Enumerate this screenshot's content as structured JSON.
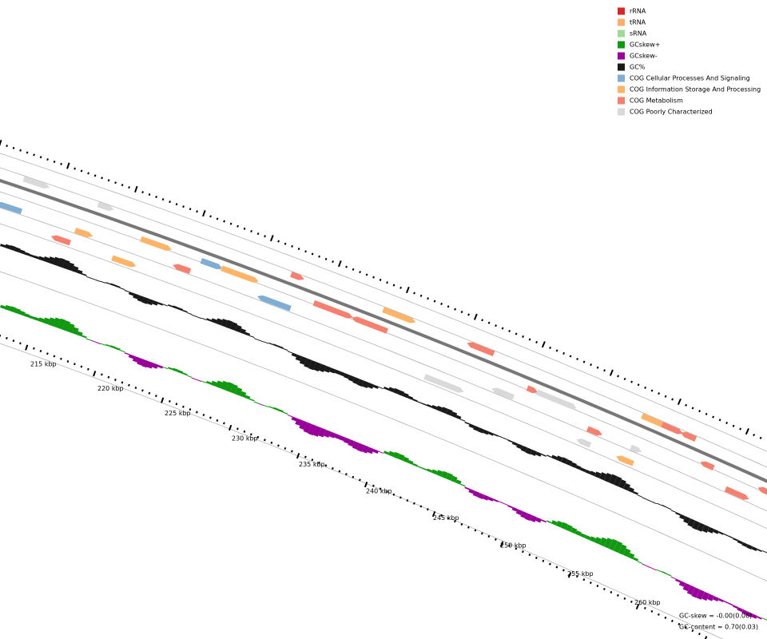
{
  "legend": [
    {
      "label": "rRNA",
      "color": "#d62728"
    },
    {
      "label": "tRNA",
      "color": "#fdae6b"
    },
    {
      "label": "sRNA",
      "color": "#a1d99b"
    },
    {
      "label": "GCskew+",
      "color": "#119911"
    },
    {
      "label": "GCskew-",
      "color": "#990099"
    },
    {
      "label": "GC%",
      "color": "#1a1a1a"
    },
    {
      "label": "COG Cellular Processes And Signaling",
      "color": "#7fadd4"
    },
    {
      "label": "COG Information Storage And Processing",
      "color": "#fdb466"
    },
    {
      "label": "COG Metabolism",
      "color": "#f6806f"
    },
    {
      "label": "COG Poorly Characterized",
      "color": "#d9d9d9"
    }
  ],
  "scale_labels": [
    "215 kbp",
    "220 kbp",
    "225 kbp",
    "230 kbp",
    "235 kbp",
    "240 kbp",
    "245 kbp",
    "250 kbp",
    "255 kbp",
    "260 kbp"
  ],
  "stats": [
    "GC-skew = -0.00(0.06)",
    "GC-content = 0.70(0.03)"
  ]
}
